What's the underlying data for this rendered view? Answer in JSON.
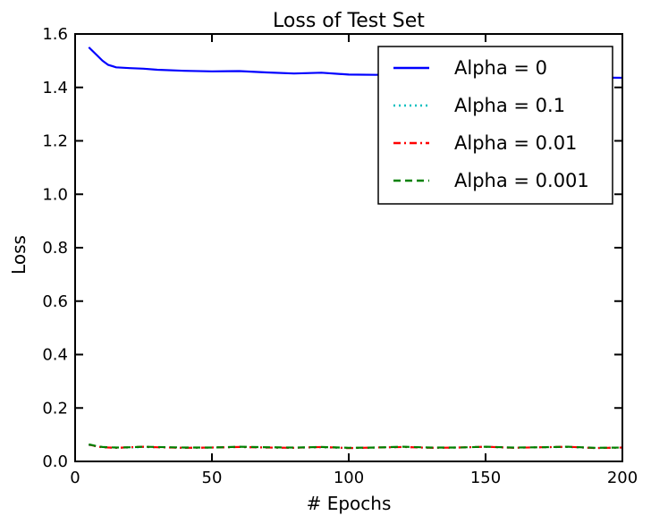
{
  "chart_data": {
    "type": "line",
    "title": "Loss of Test Set",
    "xlabel": "# Epochs",
    "ylabel": "Loss",
    "xlim": [
      0,
      200
    ],
    "ylim": [
      0.0,
      1.6
    ],
    "xticks": [
      0,
      50,
      100,
      150,
      200
    ],
    "xtick_labels": [
      "0",
      "50",
      "100",
      "150",
      "200"
    ],
    "yticks": [
      0.0,
      0.2,
      0.4,
      0.6,
      0.8,
      1.0,
      1.2,
      1.4,
      1.6
    ],
    "ytick_labels": [
      "0.0",
      "0.2",
      "0.4",
      "0.6",
      "0.8",
      "1.0",
      "1.2",
      "1.4",
      "1.6"
    ],
    "grid": false,
    "legend_position": "top-right",
    "series": [
      {
        "name": "Alpha = 0",
        "color": "#0000ff",
        "style": "solid",
        "x": [
          5,
          8,
          10,
          12,
          15,
          20,
          25,
          30,
          40,
          50,
          60,
          70,
          80,
          90,
          100,
          110,
          120,
          130,
          140,
          150,
          160,
          170,
          180,
          190,
          200
        ],
        "values": [
          1.55,
          1.52,
          1.5,
          1.485,
          1.475,
          1.472,
          1.47,
          1.466,
          1.462,
          1.46,
          1.461,
          1.456,
          1.452,
          1.455,
          1.448,
          1.447,
          1.45,
          1.446,
          1.444,
          1.442,
          1.441,
          1.44,
          1.438,
          1.437,
          1.436
        ]
      },
      {
        "name": "Alpha = 0.1",
        "color": "#00bfbf",
        "style": "dotted",
        "x": [
          5,
          8,
          10,
          15,
          20,
          25,
          30,
          40,
          50,
          60,
          70,
          80,
          90,
          100,
          110,
          120,
          130,
          140,
          150,
          160,
          170,
          180,
          190,
          200
        ],
        "values": [
          0.062,
          0.056,
          0.053,
          0.051,
          0.052,
          0.054,
          0.053,
          0.051,
          0.052,
          0.054,
          0.052,
          0.051,
          0.053,
          0.05,
          0.052,
          0.054,
          0.051,
          0.052,
          0.055,
          0.051,
          0.053,
          0.054,
          0.05,
          0.052
        ]
      },
      {
        "name": "Alpha = 0.01",
        "color": "#ff0000",
        "style": "dashdot",
        "x": [
          5,
          8,
          10,
          15,
          20,
          25,
          30,
          40,
          50,
          60,
          70,
          80,
          90,
          100,
          110,
          120,
          130,
          140,
          150,
          160,
          170,
          180,
          190,
          200
        ],
        "values": [
          0.063,
          0.056,
          0.053,
          0.051,
          0.053,
          0.055,
          0.053,
          0.051,
          0.052,
          0.054,
          0.052,
          0.051,
          0.054,
          0.05,
          0.052,
          0.054,
          0.051,
          0.052,
          0.055,
          0.051,
          0.053,
          0.055,
          0.05,
          0.052
        ]
      },
      {
        "name": "Alpha = 0.001",
        "color": "#008000",
        "style": "dashed",
        "x": [
          5,
          8,
          10,
          15,
          20,
          25,
          30,
          40,
          50,
          60,
          70,
          80,
          90,
          100,
          110,
          120,
          130,
          140,
          150,
          160,
          170,
          180,
          190,
          200
        ],
        "values": [
          0.064,
          0.057,
          0.054,
          0.052,
          0.053,
          0.055,
          0.054,
          0.052,
          0.052,
          0.055,
          0.053,
          0.052,
          0.054,
          0.051,
          0.052,
          0.055,
          0.052,
          0.052,
          0.055,
          0.052,
          0.053,
          0.055,
          0.051,
          0.052
        ]
      }
    ]
  }
}
